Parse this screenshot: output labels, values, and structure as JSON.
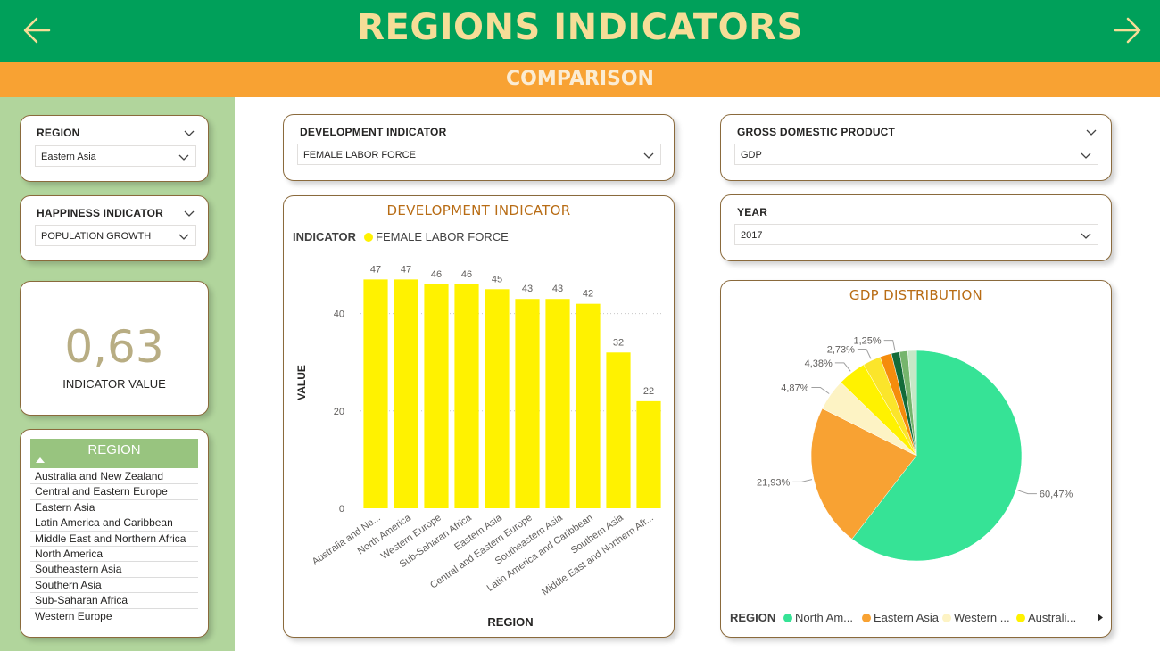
{
  "header": {
    "title": "REGIONS INDICATORS",
    "subtitle": "COMPARISON"
  },
  "slicers": {
    "region": {
      "label": "REGION",
      "value": "Eastern Asia"
    },
    "happiness": {
      "label": "HAPPINESS INDICATOR",
      "value": "POPULATION GROWTH"
    },
    "development": {
      "label": "DEVELOPMENT INDICATOR",
      "value": "FEMALE LABOR FORCE"
    },
    "gdp": {
      "label": "GROSS DOMESTIC PRODUCT",
      "value": "GDP"
    },
    "year": {
      "label": "YEAR",
      "value": "2017"
    }
  },
  "kpi": {
    "value": "0,63",
    "label": "INDICATOR VALUE"
  },
  "region_list": {
    "title": "REGION",
    "items": [
      "Australia and New Zealand",
      "Central and Eastern Europe",
      "Eastern Asia",
      "Latin America and Caribbean",
      "Middle East and Northern Africa",
      "North America",
      "Southeastern Asia",
      "Southern Asia",
      "Sub-Saharan Africa",
      "Western Europe"
    ]
  },
  "colors": {
    "header_green": "#00a05a",
    "header_orange": "#f8a233",
    "sidebar_green": "#b1d59c",
    "title_gold": "#f6dd97",
    "bar_yellow": "#fff200",
    "chart_title": "#b86c14"
  },
  "icons": {
    "prev": "arrow-left-icon",
    "next": "arrow-right-icon",
    "dropdown": "chevron-down-icon",
    "legend_more": "triangle-right-icon"
  },
  "chart_data": [
    {
      "type": "bar",
      "title": "DEVELOPMENT INDICATOR",
      "legend_title": "INDICATOR",
      "legend_placement": "top-left",
      "categories": [
        "Australia and Ne...",
        "North America",
        "Western Europe",
        "Sub-Saharan Africa",
        "Eastern Asia",
        "Central and Eastern Europe",
        "Southeastern Asia",
        "Latin America and Caribbean",
        "Southern Asia",
        "Middle East and Northern Afr..."
      ],
      "series": [
        {
          "name": "FEMALE LABOR FORCE",
          "values": [
            47,
            47,
            46,
            46,
            45,
            43,
            43,
            42,
            32,
            22
          ]
        }
      ],
      "data_labels": [
        "47",
        "47",
        "46",
        "46",
        "45",
        "43",
        "43",
        "42",
        "32",
        "22"
      ],
      "xlabel": "REGION",
      "ylabel": "VALUE",
      "ylim": [
        0,
        50
      ],
      "yticks": [
        0,
        20,
        40
      ],
      "grid": true
    },
    {
      "type": "pie",
      "title": "GDP DISTRIBUTION",
      "legend_title": "REGION",
      "legend_placement": "bottom",
      "legend_entries": [
        "North Am...",
        "Eastern Asia",
        "Western ...",
        "Australi..."
      ],
      "slices": [
        {
          "value": 60.47,
          "label": "60,47%",
          "color": "#36e396"
        },
        {
          "value": 21.93,
          "label": "21,93%",
          "color": "#f8a233"
        },
        {
          "value": 4.87,
          "label": "4,87%",
          "color": "#fdf3c4"
        },
        {
          "value": 4.38,
          "label": "4,38%",
          "color": "#fff200"
        },
        {
          "value": 2.73,
          "label": "2,73%",
          "color": "#fbe52b"
        },
        {
          "value": 1.8,
          "label": "",
          "color": "#f58c0c"
        },
        {
          "value": 1.25,
          "label": "1,25%",
          "color": "#136b39"
        },
        {
          "value": 1.25,
          "label": "",
          "color": "#75b56c"
        },
        {
          "value": 1.32,
          "label": "",
          "color": "#c6e8c6"
        }
      ]
    }
  ]
}
